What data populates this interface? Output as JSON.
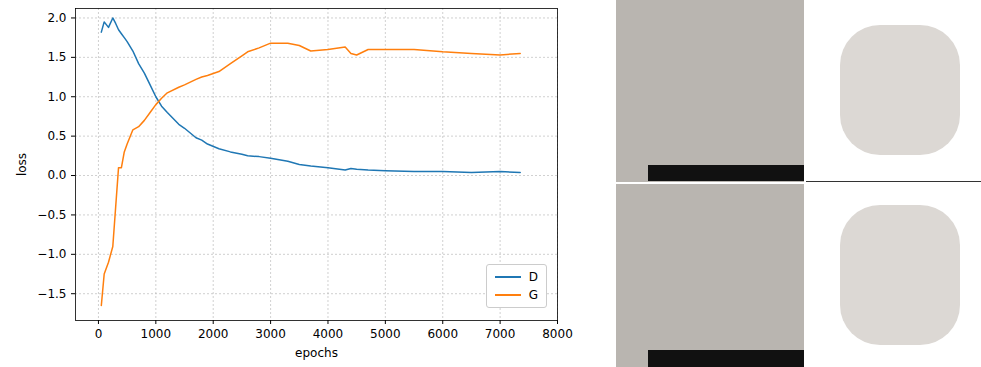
{
  "chart_data": {
    "type": "line",
    "xlabel": "epochs",
    "ylabel": "loss",
    "x": [
      50,
      100,
      175,
      250,
      300,
      350,
      400,
      450,
      500,
      600,
      700,
      800,
      900,
      1000,
      1100,
      1200,
      1400,
      1500,
      1700,
      1800,
      1900,
      2100,
      2300,
      2500,
      2600,
      2800,
      3000,
      3300,
      3500,
      3700,
      4000,
      4300,
      4400,
      4500,
      4700,
      5000,
      5500,
      6000,
      6500,
      7000,
      7350
    ],
    "series": [
      {
        "name": "D",
        "color": "#1f77b4",
        "values": [
          1.82,
          1.95,
          1.88,
          2.0,
          1.93,
          1.85,
          1.8,
          1.75,
          1.7,
          1.58,
          1.42,
          1.3,
          1.15,
          1.0,
          0.88,
          0.8,
          0.65,
          0.6,
          0.48,
          0.45,
          0.4,
          0.34,
          0.3,
          0.27,
          0.25,
          0.24,
          0.22,
          0.18,
          0.14,
          0.12,
          0.1,
          0.07,
          0.09,
          0.08,
          0.07,
          0.06,
          0.05,
          0.05,
          0.04,
          0.05,
          0.04
        ]
      },
      {
        "name": "G",
        "color": "#ff7f0e",
        "values": [
          -1.65,
          -1.25,
          -1.1,
          -0.9,
          -0.4,
          0.1,
          0.1,
          0.3,
          0.4,
          0.58,
          0.62,
          0.7,
          0.8,
          0.9,
          0.98,
          1.05,
          1.12,
          1.15,
          1.22,
          1.25,
          1.27,
          1.32,
          1.42,
          1.52,
          1.57,
          1.62,
          1.68,
          1.68,
          1.65,
          1.58,
          1.6,
          1.63,
          1.55,
          1.53,
          1.6,
          1.6,
          1.6,
          1.57,
          1.55,
          1.53,
          1.55
        ]
      }
    ],
    "xlim": [
      -400,
      8000
    ],
    "xticks": [
      0,
      1000,
      2000,
      3000,
      4000,
      5000,
      6000,
      7000,
      8000
    ],
    "ylim": [
      -1.84,
      2.12
    ],
    "yticks": [
      {
        "value": -1.5,
        "label": "−1.5"
      },
      {
        "value": -1.0,
        "label": "−1.0"
      },
      {
        "value": -0.5,
        "label": "−0.5"
      },
      {
        "value": 0,
        "label": "0.0"
      },
      {
        "value": 0.5,
        "label": "0.5"
      },
      {
        "value": 1.0,
        "label": "1.0"
      },
      {
        "value": 1.5,
        "label": "1.5"
      },
      {
        "value": 2.0,
        "label": "2.0"
      }
    ],
    "grid": true,
    "legend": "lower right"
  }
}
